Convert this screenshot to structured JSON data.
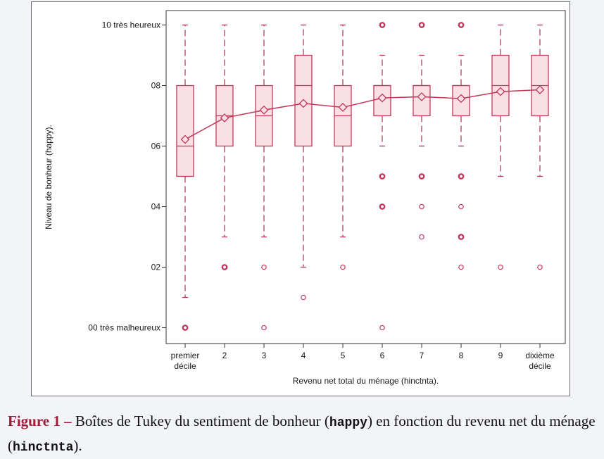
{
  "chart_data": {
    "type": "box",
    "xlabel": "Revenu net total du ménage (hinctnta).",
    "ylabel": "Niveau de bonheur (happy).",
    "ylim": [
      0,
      10
    ],
    "yticks": [
      {
        "value": 0,
        "label": "00 très malheureux"
      },
      {
        "value": 2,
        "label": "02"
      },
      {
        "value": 4,
        "label": "04"
      },
      {
        "value": 6,
        "label": "06"
      },
      {
        "value": 8,
        "label": "08"
      },
      {
        "value": 10,
        "label": "10 très heureux"
      }
    ],
    "categories": [
      {
        "label": [
          "premier",
          "décile"
        ]
      },
      {
        "label": [
          "2"
        ]
      },
      {
        "label": [
          "3"
        ]
      },
      {
        "label": [
          "4"
        ]
      },
      {
        "label": [
          "5"
        ]
      },
      {
        "label": [
          "6"
        ]
      },
      {
        "label": [
          "7"
        ]
      },
      {
        "label": [
          "8"
        ]
      },
      {
        "label": [
          "9"
        ]
      },
      {
        "label": [
          "dixième",
          "décile"
        ]
      }
    ],
    "boxes": [
      {
        "whisker_low": 1,
        "q1": 5,
        "median": 6,
        "q3": 8,
        "whisker_high": 10,
        "mean": 6.22,
        "outliers": [
          {
            "y": 0,
            "heavy": true
          }
        ]
      },
      {
        "whisker_low": 3,
        "q1": 6,
        "median": 7,
        "q3": 8,
        "whisker_high": 10,
        "mean": 6.93,
        "outliers": [
          {
            "y": 2,
            "heavy": true
          }
        ]
      },
      {
        "whisker_low": 3,
        "q1": 6,
        "median": 7,
        "q3": 8,
        "whisker_high": 10,
        "mean": 7.19,
        "outliers": [
          {
            "y": 2,
            "heavy": false
          },
          {
            "y": 0,
            "heavy": false
          }
        ]
      },
      {
        "whisker_low": 2,
        "q1": 6,
        "median": 8,
        "q3": 9,
        "whisker_high": 10,
        "mean": 7.41,
        "outliers": [
          {
            "y": 1,
            "heavy": false
          }
        ]
      },
      {
        "whisker_low": 3,
        "q1": 6,
        "median": 7,
        "q3": 8,
        "whisker_high": 10,
        "mean": 7.28,
        "outliers": [
          {
            "y": 2,
            "heavy": false
          }
        ]
      },
      {
        "whisker_low": 6,
        "q1": 7,
        "median": 8,
        "q3": 8,
        "whisker_high": 9,
        "mean": 7.59,
        "outliers": [
          {
            "y": 10,
            "heavy": true
          },
          {
            "y": 5,
            "heavy": true
          },
          {
            "y": 4,
            "heavy": true
          },
          {
            "y": 0,
            "heavy": false
          }
        ]
      },
      {
        "whisker_low": 6,
        "q1": 7,
        "median": 8,
        "q3": 8,
        "whisker_high": 9,
        "mean": 7.63,
        "outliers": [
          {
            "y": 10,
            "heavy": true
          },
          {
            "y": 5,
            "heavy": true
          },
          {
            "y": 4,
            "heavy": false
          },
          {
            "y": 3,
            "heavy": false
          }
        ]
      },
      {
        "whisker_low": 6,
        "q1": 7,
        "median": 8,
        "q3": 8,
        "whisker_high": 9,
        "mean": 7.57,
        "outliers": [
          {
            "y": 10,
            "heavy": true
          },
          {
            "y": 5,
            "heavy": true
          },
          {
            "y": 4,
            "heavy": false
          },
          {
            "y": 3,
            "heavy": true
          },
          {
            "y": 2,
            "heavy": false
          }
        ]
      },
      {
        "whisker_low": 5,
        "q1": 7,
        "median": 8,
        "q3": 9,
        "whisker_high": 10,
        "mean": 7.8,
        "outliers": [
          {
            "y": 2,
            "heavy": false
          }
        ]
      },
      {
        "whisker_low": 5,
        "q1": 7,
        "median": 8,
        "q3": 9,
        "whisker_high": 10,
        "mean": 7.86,
        "outliers": [
          {
            "y": 2,
            "heavy": false
          }
        ]
      }
    ],
    "mean_line": true,
    "grid": false,
    "legend": "none"
  },
  "colors": {
    "series": "#c0395b",
    "box_fill": "#f9e0e5",
    "axis": "#333333",
    "caption_label": "#a11c36"
  },
  "caption": {
    "label": "Figure 1 –",
    "text_1": " Boîtes de Tukey du sentiment de bonheur (",
    "code_1": "happy",
    "text_2": ") en fonction du revenu net du ménage (",
    "code_2": "hinctnta",
    "text_3": ")."
  }
}
